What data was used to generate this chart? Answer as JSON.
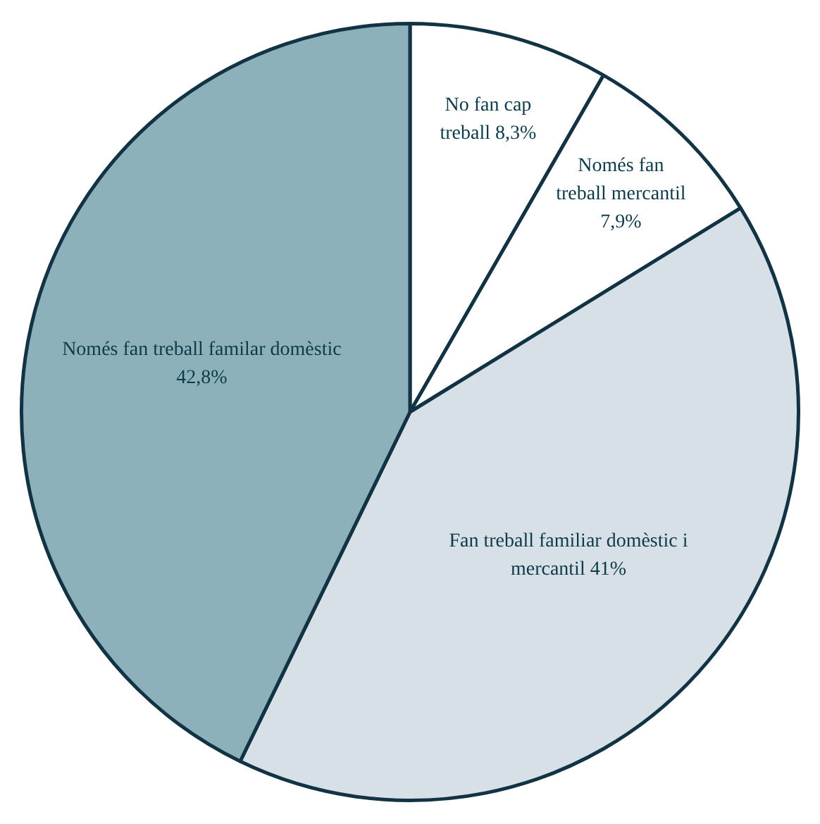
{
  "chart_data": {
    "type": "pie",
    "categories": [
      "No fan cap treball",
      "Només fan treball mercantil",
      "Fan treball familiar domèstic i mercantil",
      "Només fan treball familar domèstic"
    ],
    "values": [
      8.3,
      7.9,
      41,
      42.8
    ],
    "value_labels": [
      "8,3%",
      "7,9%",
      "41%",
      "42,8%"
    ],
    "colors": [
      "#ffffff",
      "#ffffff",
      "#d6e0e6",
      "#8db1ba"
    ],
    "legend": false
  }
}
